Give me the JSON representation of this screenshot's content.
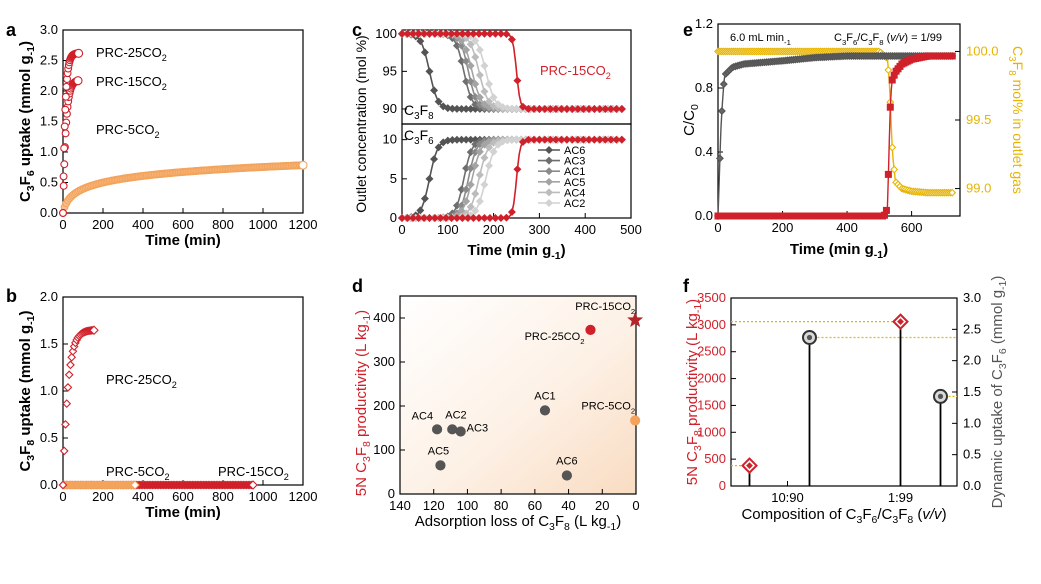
{
  "colors": {
    "red": "#d0202a",
    "orange": "#f3a35b",
    "gray": "#555555",
    "lightgray": "#bbbbbb",
    "yellow": "#e8b400",
    "darkred": "#b2262b",
    "ink": "#000000"
  },
  "panels": {
    "a": "a",
    "b": "b",
    "c": "c",
    "d": "d",
    "e": "e",
    "f": "f"
  },
  "chart_data": [
    {
      "id": "a",
      "type": "scatter",
      "ylabel": {
        "p1": "C",
        "s1": "3",
        "p2": "F",
        "s2": "6",
        "p3": " uptake (mmol g",
        "sup": "-1",
        "p4": ")"
      },
      "xlabel": "Time (min)",
      "xlim": [
        0,
        1200
      ],
      "ylim": [
        0,
        3.0
      ],
      "xticks": [
        "0",
        "200",
        "400",
        "600",
        "800",
        "1000",
        "1200"
      ],
      "yticks": [
        "0.0",
        "0.5",
        "1.0",
        "1.5",
        "2.0",
        "2.5",
        "3.0"
      ],
      "series": [
        {
          "name": "PRC-25CO2",
          "label": {
            "base": "PRC-25CO",
            "sub": "2"
          },
          "color": "red",
          "model": "satexp",
          "xmax": 78,
          "plateau": 2.62,
          "k": 0.09,
          "n": 28
        },
        {
          "name": "PRC-15CO2",
          "label": {
            "base": "PRC-15CO",
            "sub": "2"
          },
          "color": "red",
          "model": "satexp",
          "xmax": 75,
          "plateau": 2.18,
          "k": 0.07,
          "n": 24
        },
        {
          "name": "PRC-5CO2",
          "label": {
            "base": "PRC-5CO",
            "sub": "2"
          },
          "color": "orange",
          "model": "log",
          "xmax": 1200,
          "a": 0.104,
          "b": 0.162,
          "n": 150
        }
      ]
    },
    {
      "id": "b",
      "type": "scatter",
      "ylabel": {
        "p1": "C",
        "s1": "3",
        "p2": "F",
        "s2": "8",
        "p3": " uptake (mmol g",
        "sup": "-1",
        "p4": ")"
      },
      "xlabel": "Time (min)",
      "xlim": [
        0,
        1200
      ],
      "ylim": [
        0,
        2.0
      ],
      "xticks": [
        "0",
        "200",
        "400",
        "600",
        "800",
        "1000",
        "1200"
      ],
      "yticks": [
        "0.0",
        "0.5",
        "1.0",
        "1.5",
        "2.0"
      ],
      "series": [
        {
          "name": "PRC-25CO2",
          "label": {
            "base": "PRC-25CO",
            "sub": "2"
          },
          "color": "red",
          "model": "satexp",
          "xmax": 155,
          "plateau": 1.65,
          "k": 0.04,
          "n": 26
        },
        {
          "name": "PRC-5CO2",
          "label": {
            "base": "PRC-5CO",
            "sub": "2"
          },
          "color": "orange",
          "model": "const",
          "xmax": 360,
          "value": 0.0,
          "n": 60
        },
        {
          "name": "PRC-15CO2",
          "label": {
            "base": "PRC-15CO",
            "sub": "2"
          },
          "color": "red",
          "model": "const",
          "xmax": 950,
          "value": 0.0,
          "n": 120
        }
      ]
    },
    {
      "id": "c",
      "type": "line",
      "ylabel": "Outlet concentration (mol %)",
      "xlabel": {
        "p1": "Time (min g",
        "sup": "-1",
        "p2": ")"
      },
      "xlim": [
        0,
        500
      ],
      "xticks": [
        "0",
        "100",
        "200",
        "300",
        "400",
        "500"
      ],
      "top": {
        "ylim": [
          88,
          100.5
        ],
        "yticks": [
          "90",
          "95",
          "100"
        ],
        "label": {
          "p1": "C",
          "s1": "3",
          "p2": "F",
          "s2": "8"
        }
      },
      "bottom": {
        "ylim": [
          0,
          12
        ],
        "yticks": [
          "0",
          "5",
          "10"
        ],
        "label": {
          "p1": "C",
          "s1": "3",
          "p2": "F",
          "s2": "6"
        }
      },
      "annotation": {
        "base": "PRC-15CO",
        "sub": "2"
      },
      "series": [
        {
          "name": "AC6",
          "color": "#545454",
          "bt": 60,
          "tau": 9
        },
        {
          "name": "AC3",
          "color": "#6e6e6e",
          "bt": 135,
          "tau": 9
        },
        {
          "name": "AC1",
          "color": "#8a8a8a",
          "bt": 145,
          "tau": 9
        },
        {
          "name": "AC5",
          "color": "#a4a4a4",
          "bt": 153,
          "tau": 10
        },
        {
          "name": "AC4",
          "color": "#bcbcbc",
          "bt": 168,
          "tau": 10
        },
        {
          "name": "AC2",
          "color": "#d2d2d2",
          "bt": 183,
          "tau": 10
        },
        {
          "name": "PRC-15CO2",
          "color": "red",
          "bt": 250,
          "tau": 4
        }
      ]
    },
    {
      "id": "d",
      "type": "scatter",
      "ylabel": {
        "p1": "5N C",
        "s1": "3",
        "p2": "F",
        "s2": "8",
        "p3": " productivity (L kg",
        "sup": "-1",
        "p4": ")"
      },
      "xlabel": {
        "p1": "Adsorption loss of C",
        "s1": "3",
        "p2": "F",
        "s2": "8",
        "p3": " (L kg",
        "sup": "-1",
        "p4": ")"
      },
      "xlim": [
        140,
        0
      ],
      "ylim": [
        0,
        450
      ],
      "xticks": [
        "140",
        "120",
        "100",
        "80",
        "60",
        "40",
        "20",
        "0"
      ],
      "yticks": [
        "0",
        "100",
        "200",
        "300",
        "400"
      ],
      "points": [
        {
          "name": "AC4",
          "x": 118,
          "y": 147,
          "color": "gray",
          "shape": "circle",
          "label": "AC4"
        },
        {
          "name": "AC2",
          "x": 109,
          "y": 147,
          "color": "gray",
          "shape": "circle",
          "label": "AC2"
        },
        {
          "name": "AC3",
          "x": 104,
          "y": 142,
          "color": "gray",
          "shape": "circle",
          "label": "AC3"
        },
        {
          "name": "AC5",
          "x": 116,
          "y": 65,
          "color": "gray",
          "shape": "circle",
          "label": "AC5"
        },
        {
          "name": "AC1",
          "x": 54,
          "y": 190,
          "color": "gray",
          "shape": "circle",
          "label": "AC1"
        },
        {
          "name": "AC6",
          "x": 41,
          "y": 42,
          "color": "gray",
          "shape": "circle",
          "label": "AC6"
        },
        {
          "name": "PRC-5CO2",
          "x": 0.5,
          "y": 167,
          "color": "orange",
          "shape": "circle",
          "label": {
            "base": "PRC-5CO",
            "sub": "2"
          }
        },
        {
          "name": "PRC-25CO2",
          "x": 27,
          "y": 373,
          "color": "red",
          "shape": "circle",
          "label": {
            "base": "PRC-25CO",
            "sub": "2"
          }
        },
        {
          "name": "PRC-15CO2",
          "x": 0.5,
          "y": 395,
          "color": "darkred",
          "shape": "star",
          "label": {
            "base": "PRC-15CO",
            "sub": "2"
          }
        }
      ]
    },
    {
      "id": "e",
      "type": "line",
      "ylabel_left": {
        "p1": "C/C",
        "s1": "0"
      },
      "ylabel_right": {
        "p1": "C",
        "s1": "3",
        "p2": "F",
        "s2": "8",
        "p3": " mol% in outlet gas"
      },
      "xlabel": {
        "p1": "Time (min g",
        "sup": "-1",
        "p2": ")"
      },
      "xlim": [
        0,
        750
      ],
      "ylim_left": [
        0,
        1.2
      ],
      "ylim_right": [
        98.8,
        100.2
      ],
      "xticks": [
        "0",
        "200",
        "400",
        "600"
      ],
      "yticks_left": [
        "0.0",
        "0.4",
        "0.8",
        "1.2"
      ],
      "yticks_right": [
        "99.0",
        "99.5",
        "100.0"
      ],
      "flow_note": {
        "p1": "6.0 mL min",
        "sup": "-1"
      },
      "composition_note": {
        "p1": "C",
        "s1": "3",
        "p2": "F",
        "s2": "6",
        "p3": "/C",
        "s3": "3",
        "p4": "F",
        "s4": "8",
        "p5": " (",
        "it": "v/v",
        "p6": ") = 1/99"
      },
      "series": [
        {
          "name": "C3F6 C/C0",
          "axis": "left",
          "color": "gray",
          "points": [
            [
              0,
              0.0
            ],
            [
              10,
              0.6
            ],
            [
              20,
              0.88
            ],
            [
              45,
              0.93
            ],
            [
              80,
              0.95
            ],
            [
              140,
              0.96
            ],
            [
              200,
              0.97
            ],
            [
              250,
              0.98
            ],
            [
              300,
              0.99
            ],
            [
              400,
              1.0
            ],
            [
              500,
              1.0
            ],
            [
              600,
              1.0
            ],
            [
              730,
              1.0
            ]
          ]
        },
        {
          "name": "C3F8 C/C0",
          "axis": "left",
          "color": "red",
          "points": [
            [
              0,
              0.0
            ],
            [
              515,
              0.0
            ],
            [
              525,
              0.05
            ],
            [
              530,
              0.4
            ],
            [
              535,
              0.75
            ],
            [
              540,
              0.85
            ],
            [
              550,
              0.9
            ],
            [
              570,
              0.95
            ],
            [
              600,
              0.98
            ],
            [
              650,
              1.0
            ],
            [
              730,
              1.0
            ]
          ]
        },
        {
          "name": "C3F8 mol%",
          "axis": "right",
          "color": "yellow",
          "points": [
            [
              0,
              100.0
            ],
            [
              500,
              100.0
            ],
            [
              525,
              99.95
            ],
            [
              532,
              99.75
            ],
            [
              537,
              99.45
            ],
            [
              541,
              99.25
            ],
            [
              550,
              99.05
            ],
            [
              570,
              99.0
            ],
            [
              600,
              98.98
            ],
            [
              650,
              98.97
            ],
            [
              730,
              98.97
            ]
          ]
        }
      ]
    },
    {
      "id": "f",
      "type": "bar",
      "ylabel_left": {
        "p1": "5N C",
        "s1": "3",
        "p2": "F",
        "s2": "8",
        "p3": " productivity (L kg",
        "sup": "-1",
        "p4": ")"
      },
      "ylabel_right": {
        "p1": "Dynamic uptake of C",
        "s1": "3",
        "p2": "F",
        "s2": "6",
        "p3": " (mmol g",
        "sup": "-1",
        "p4": ")"
      },
      "xlabel": {
        "p1": "Composition of C",
        "s1": "3",
        "p2": "F",
        "s2": "6",
        "p3": "/C",
        "s3": "3",
        "p4": "F",
        "s4": "8",
        "p5": " (",
        "it": "v/v",
        "p6": ")"
      },
      "categories": [
        "10:90",
        "1:99"
      ],
      "ylim_left": [
        0,
        3500
      ],
      "ylim_right": [
        0,
        3.0
      ],
      "yticks_left": [
        "0",
        "500",
        "1000",
        "1500",
        "2000",
        "2500",
        "3000",
        "3500"
      ],
      "yticks_right": [
        "0.0",
        "0.5",
        "1.0",
        "1.5",
        "2.0",
        "2.5",
        "3.0"
      ],
      "series": [
        {
          "name": "5N C3F8 productivity",
          "axis": "left",
          "marker": "diamond",
          "color": "red",
          "values": [
            380,
            3060
          ]
        },
        {
          "name": "Dynamic uptake of C3F6",
          "axis": "right",
          "marker": "circle",
          "color": "gray",
          "values": [
            2.37,
            1.43
          ]
        }
      ]
    }
  ]
}
